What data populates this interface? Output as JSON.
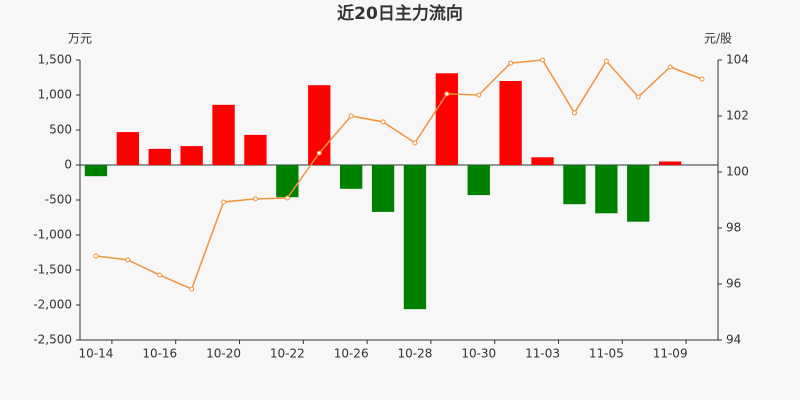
{
  "chart_data": {
    "type": "bar-line",
    "title": "近20日主力流向",
    "y_label": "万元",
    "y2_label": "元/股",
    "categories": [
      "10-14",
      null,
      "10-16",
      null,
      "10-20",
      null,
      "10-22",
      null,
      "10-26",
      null,
      "10-28",
      null,
      "10-30",
      null,
      "11-03",
      null,
      "11-05",
      null,
      "11-09",
      null
    ],
    "series": [
      {
        "type": "bar",
        "positive_color": "#ff0000",
        "negative_color": "#008000",
        "values": [
          -160,
          470,
          230,
          270,
          860,
          430,
          -460,
          1140,
          -340,
          -670,
          -2060,
          1310,
          -430,
          1200,
          110,
          -560,
          -690,
          -810,
          50,
          null
        ]
      },
      {
        "type": "line",
        "axis": "y2",
        "color": "#f0943c",
        "values": [
          97.0,
          96.86,
          96.32,
          95.82,
          98.93,
          99.04,
          99.07,
          100.68,
          102.0,
          101.79,
          101.04,
          102.79,
          102.75,
          103.89,
          104.0,
          102.11,
          103.96,
          102.68,
          103.75,
          103.32
        ]
      }
    ],
    "ylim": [
      -2500,
      1500
    ],
    "yticks": [
      {
        "value": -2500,
        "label": "-2,500"
      },
      {
        "value": -2000,
        "label": "-2,000"
      },
      {
        "value": -1500,
        "label": "-1,500"
      },
      {
        "value": -1000,
        "label": "-1,000"
      },
      -500,
      0,
      500,
      {
        "value": 1000,
        "label": "1,000"
      },
      {
        "value": 1500,
        "label": "1,500"
      }
    ],
    "y2lim": [
      94,
      104
    ],
    "y2ticks": [
      94,
      96,
      98,
      100,
      102,
      104
    ]
  }
}
